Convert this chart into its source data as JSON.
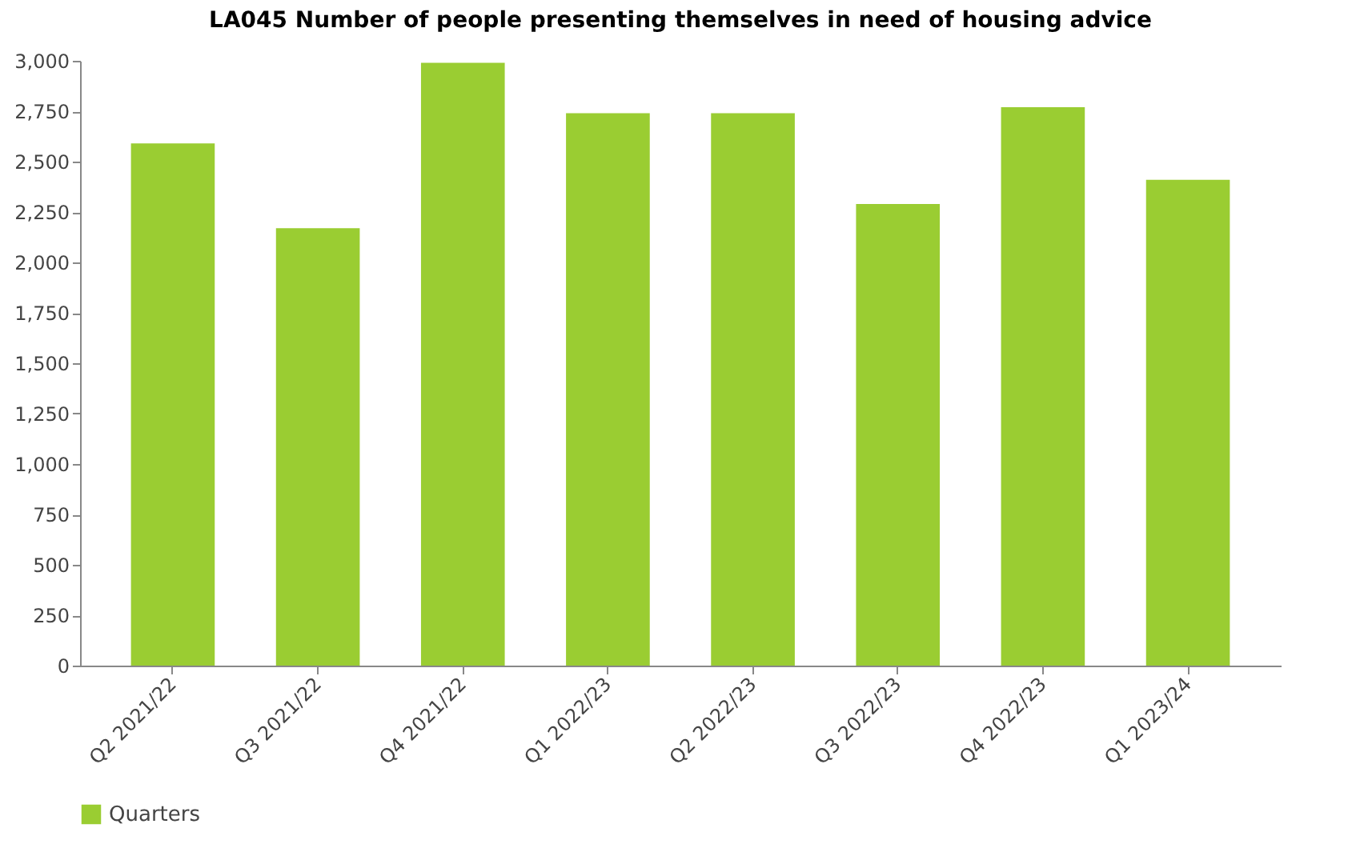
{
  "chart_data": {
    "type": "bar",
    "title": "LA045 Number of people presenting themselves in need of housing advice",
    "categories": [
      "Q2 2021/22",
      "Q3 2021/22",
      "Q4 2021/22",
      "Q1 2022/23",
      "Q2 2022/23",
      "Q3 2022/23",
      "Q4 2022/23",
      "Q1 2023/24"
    ],
    "series": [
      {
        "name": "Quarters",
        "color": "#9acd32",
        "values": [
          2590,
          2170,
          2990,
          2740,
          2740,
          2290,
          2770,
          2410
        ]
      }
    ],
    "ylim": [
      0,
      3000
    ],
    "yticks": [
      {
        "value": 0,
        "label": "0"
      },
      {
        "value": 250,
        "label": "250"
      },
      {
        "value": 500,
        "label": "500"
      },
      {
        "value": 750,
        "label": "750"
      },
      {
        "value": 1000,
        "label": "1,000"
      },
      {
        "value": 1250,
        "label": "1,250"
      },
      {
        "value": 1500,
        "label": "1,500"
      },
      {
        "value": 1750,
        "label": "1,750"
      },
      {
        "value": 2000,
        "label": "2,000"
      },
      {
        "value": 2250,
        "label": "2,250"
      },
      {
        "value": 2500,
        "label": "2,500"
      },
      {
        "value": 2750,
        "label": "2,750"
      },
      {
        "value": 3000,
        "label": "3,000"
      }
    ],
    "grid": false,
    "legend": "bottom"
  }
}
